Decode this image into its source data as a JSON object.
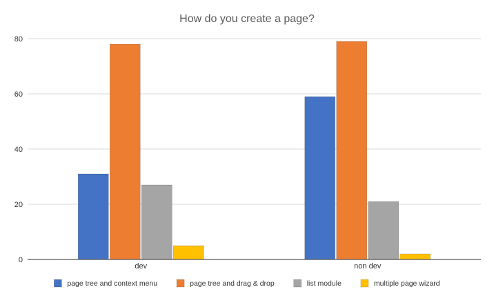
{
  "chart_data": {
    "type": "bar",
    "title": "How do you create a page?",
    "categories": [
      "dev",
      "non dev"
    ],
    "series": [
      {
        "name": "page tree and context menu",
        "color": "#4472C4",
        "values": [
          31,
          59
        ]
      },
      {
        "name": "page tree and drag & drop",
        "color": "#ED7D31",
        "values": [
          78,
          79
        ]
      },
      {
        "name": "list module",
        "color": "#A5A5A5",
        "values": [
          27,
          21
        ]
      },
      {
        "name": "multiple page wizard",
        "color": "#FFC000",
        "values": [
          5,
          2
        ]
      }
    ],
    "ylim": [
      0,
      80
    ],
    "yticks": [
      "0",
      "20",
      "40",
      "60",
      "80"
    ],
    "grid": true,
    "legend": "bottom"
  }
}
